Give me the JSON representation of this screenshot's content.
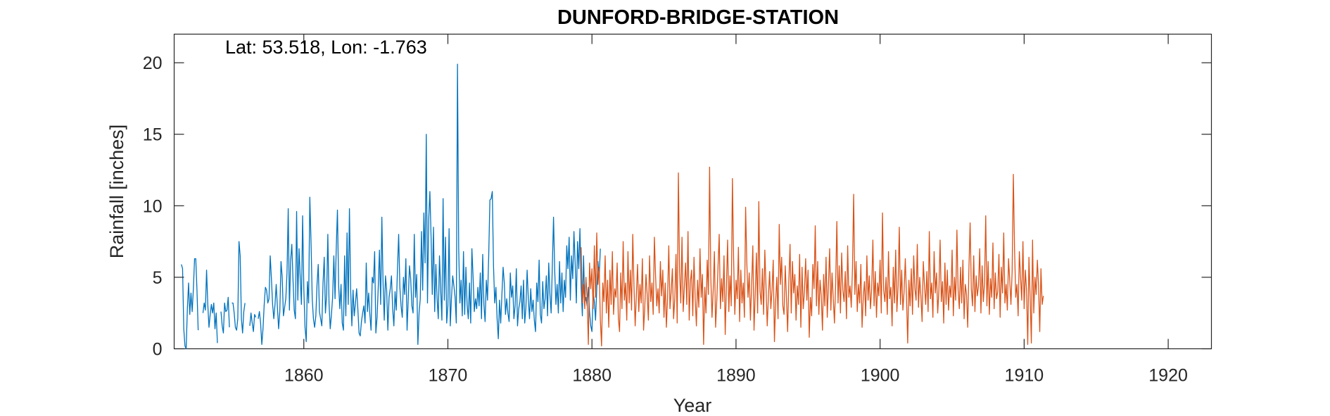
{
  "chart_data": {
    "type": "line",
    "title": "DUNFORD-BRIDGE-STATION",
    "xlabel": "Year",
    "ylabel": "Rainfall [inches]",
    "annotation": "Lat: 53.518, Lon: -1.763",
    "xlim": [
      1851,
      1923
    ],
    "ylim": [
      0,
      22
    ],
    "xticks": [
      1860,
      1870,
      1880,
      1890,
      1900,
      1910,
      1920
    ],
    "yticks": [
      0,
      5,
      10,
      15,
      20
    ],
    "grid": false,
    "series": [
      {
        "color": "#0072BD",
        "start_year": 1851.5,
        "step": 0.0833333,
        "values": [
          5.9,
          5.6,
          1.4,
          0.2,
          0,
          2.8,
          4.6,
          2.4,
          3.9,
          2.6,
          4.2,
          6.3,
          6.3,
          4.1,
          1.3,
          null,
          null,
          null,
          2.5,
          3.2,
          2.7,
          5.5,
          3.1,
          1.5,
          2.4,
          3.1,
          2.5,
          3.2,
          1.4,
          2.5,
          0.4,
          null,
          null,
          2.6,
          1.6,
          1.1,
          3.2,
          2.6,
          2.7,
          3.6,
          1.5,
          null,
          3.2,
          3.2,
          2.5,
          1.5,
          1.3,
          2.1,
          7.5,
          6.5,
          2.1,
          1.1,
          2.6,
          3.2,
          null,
          null,
          null,
          1.6,
          2.5,
          1.8,
          1.2,
          2.4,
          2.2,
          null,
          2.1,
          2.6,
          1.8,
          0.3,
          1.4,
          3.1,
          4.3,
          4.1,
          3.2,
          3.5,
          6.5,
          4.9,
          3.1,
          2.1,
          3.1,
          4.5,
          2.9,
          1.4,
          2.6,
          6.1,
          5.0,
          2.3,
          2.9,
          3.5,
          5.3,
          9.8,
          2.7,
          6.2,
          7.3,
          4.8,
          2.7,
          2.1,
          9.6,
          3.4,
          7.0,
          5.0,
          3.1,
          9.3,
          4.2,
          1.5,
          0.5,
          4.7,
          3.2,
          10.6,
          7.5,
          3.5,
          2.1,
          1.5,
          2.3,
          4.5,
          5.9,
          2.6,
          2.1,
          1.6,
          4.6,
          6.4,
          2.5,
          3.8,
          8.0,
          3.2,
          1.4,
          2.4,
          3.6,
          6.5,
          3.5,
          7.0,
          9.7,
          4.4,
          2.8,
          4.5,
          1.8,
          1.3,
          6.5,
          2.3,
          8.1,
          3.1,
          9.8,
          4.2,
          1.6,
          4.1,
          2.3,
          3.2,
          4.2,
          2.8,
          1.1,
          0.9,
          1.9,
          2.5,
          3.0,
          1.8,
          6.0,
          2.6,
          3.9,
          2.4,
          1.3,
          5.0,
          4.6,
          6.8,
          1.1,
          2.2,
          4.3,
          6.9,
          3.1,
          9.2,
          4.6,
          2.0,
          5.1,
          4.1,
          1.3,
          3.6,
          4.2,
          5.1,
          2.8,
          1.6,
          4.0,
          2.7,
          5.6,
          8.0,
          4.3,
          3.0,
          2.2,
          5.0,
          3.8,
          6.3,
          1.3,
          3.5,
          5.8,
          4.9,
          3.0,
          2.5,
          8.0,
          3.6,
          5.2,
          0.3,
          2.5,
          3.5,
          8.2,
          4.1,
          9.5,
          6.0,
          15.0,
          3.2,
          9.0,
          11.0,
          7.8,
          3.8,
          8.5,
          2.6,
          5.9,
          3.5,
          2.1,
          6.5,
          4.1,
          2.0,
          10.5,
          3.4,
          7.8,
          1.8,
          3.0,
          8.4,
          1.6,
          3.6,
          5.1,
          4.4,
          3.6,
          1.8,
          19.9,
          7.0,
          3.2,
          4.8,
          2.3,
          6.8,
          2.4,
          5.7,
          3.1,
          2.1,
          4.6,
          1.8,
          7.0,
          5.0,
          2.6,
          3.5,
          2.8,
          4.3,
          3.0,
          5.3,
          2.1,
          6.6,
          3.1,
          1.9,
          4.8,
          3.4,
          6.5,
          10.4,
          10.5,
          11.0,
          5.8,
          3.2,
          4.3,
          2.1,
          0.7,
          3.4,
          1.8,
          3.8,
          5.7,
          4.6,
          2.4,
          3.5,
          2.5,
          1.9,
          5.3,
          3.6,
          4.4,
          2.1,
          3.0,
          5.6,
          1.6,
          2.8,
          3.3,
          4.4,
          2.1,
          4.8,
          1.8,
          2.9,
          5.5,
          3.5,
          2.1,
          4.2,
          2.6,
          3.4,
          2.0,
          1.2,
          4.6,
          3.3,
          6.2,
          2.4,
          1.8,
          4.7,
          2.8,
          3.5,
          5.1,
          2.3,
          6.0,
          3.8,
          2.5,
          5.8,
          9.2,
          5.4,
          3.1,
          4.5,
          2.5,
          6.1,
          3.2,
          5.3,
          2.6,
          4.8,
          3.6,
          7.2,
          5.6,
          7.8,
          3.4,
          6.5,
          4.9,
          8.2,
          6.0,
          3.2,
          7.5,
          5.6,
          8.4,
          4.3,
          2.3,
          6.5,
          3.2,
          3.6,
          3.0,
          4.3,
          2.6,
          1.6,
          1.2,
          3.9,
          3.3,
          2.0,
          4.2,
          6.1,
          5.0,
          7.0
        ]
      },
      {
        "color": "#D95319",
        "start_year": 1879.25,
        "step": 0.0833333,
        "values": [
          7.1,
          3.2,
          4.5,
          2.8,
          5.0,
          3.5,
          0.3,
          6.0,
          4.2,
          5.6,
          2.8,
          7.2,
          3.6,
          8.1,
          4.5,
          5.7,
          2.0,
          0.2,
          4.6,
          3.3,
          6.5,
          2.5,
          4.8,
          1.5,
          5.5,
          3.1,
          6.8,
          2.4,
          4.2,
          3.6,
          6.0,
          2.1,
          1.2,
          5.3,
          2.8,
          7.5,
          3.4,
          4.6,
          2.0,
          6.8,
          3.2,
          5.5,
          2.7,
          8.0,
          4.4,
          1.6,
          3.8,
          5.9,
          2.6,
          4.5,
          3.2,
          6.3,
          1.3,
          2.9,
          5.2,
          3.8,
          2.0,
          6.5,
          3.3,
          4.6,
          2.4,
          7.8,
          5.1,
          3.0,
          4.2,
          2.5,
          6.1,
          3.7,
          5.5,
          2.2,
          4.6,
          1.5,
          3.6,
          7.2,
          2.8,
          4.0,
          5.6,
          2.1,
          3.5,
          6.6,
          1.8,
          12.3,
          5.4,
          3.2,
          7.8,
          2.6,
          4.4,
          6.0,
          3.1,
          8.2,
          2.0,
          4.7,
          5.5,
          2.3,
          6.4,
          3.5,
          1.6,
          4.8,
          2.9,
          7.0,
          3.6,
          5.2,
          0.3,
          4.3,
          2.5,
          6.2,
          3.8,
          12.7,
          5.0,
          2.2,
          4.1,
          6.8,
          1.5,
          3.4,
          5.7,
          8.0,
          2.8,
          4.9,
          3.3,
          6.5,
          1.0,
          4.4,
          7.6,
          2.6,
          5.1,
          3.0,
          11.9,
          6.3,
          2.4,
          4.8,
          3.5,
          7.1,
          1.9,
          5.5,
          3.2,
          4.6,
          2.2,
          9.9,
          6.0,
          3.6,
          5.3,
          2.0,
          4.4,
          7.2,
          1.3,
          3.8,
          6.7,
          2.5,
          10.3,
          4.0,
          3.1,
          5.6,
          2.4,
          6.9,
          4.3,
          1.6,
          3.7,
          5.4,
          2.8,
          4.1,
          6.2,
          0.5,
          3.3,
          5.0,
          2.1,
          8.7,
          4.5,
          6.4,
          3.0,
          2.4,
          5.8,
          3.6,
          1.2,
          4.7,
          7.3,
          2.5,
          6.1,
          3.9,
          5.2,
          2.0,
          4.4,
          3.1,
          6.6,
          1.5,
          5.7,
          2.8,
          4.0,
          6.3,
          3.4,
          5.5,
          0.8,
          3.6,
          2.3,
          5.9,
          4.2,
          8.6,
          3.0,
          6.1,
          2.4,
          4.8,
          3.7,
          1.3,
          5.2,
          3.0,
          6.4,
          2.2,
          4.5,
          7.0,
          2.7,
          5.3,
          3.5,
          1.8,
          4.6,
          8.9,
          3.2,
          5.8,
          2.5,
          6.7,
          4.1,
          3.3,
          5.4,
          2.1,
          7.2,
          3.6,
          4.4,
          2.9,
          5.6,
          10.8,
          3.8,
          6.1,
          2.6,
          4.5,
          3.2,
          5.9,
          1.5,
          3.6,
          4.7,
          2.3,
          6.5,
          3.4,
          5.1,
          2.8,
          4.2,
          7.6,
          3.0,
          5.4,
          2.2,
          4.6,
          3.7,
          6.2,
          2.5,
          9.5,
          4.1,
          3.3,
          5.0,
          2.4,
          6.8,
          3.5,
          4.3,
          1.6,
          5.7,
          3.2,
          6.9,
          2.6,
          4.4,
          8.5,
          3.1,
          5.5,
          2.7,
          4.0,
          6.3,
          3.6,
          0.4,
          4.8,
          3.0,
          5.6,
          2.4,
          6.5,
          4.2,
          3.4,
          7.3,
          2.9,
          5.0,
          3.7,
          1.9,
          6.1,
          4.4,
          3.1,
          5.4,
          2.6,
          8.2,
          3.5,
          4.6,
          2.2,
          6.8,
          3.9,
          5.3,
          2.5,
          4.1,
          7.6,
          3.3,
          4.7,
          1.8,
          6.0,
          3.1,
          5.5,
          2.7,
          4.4,
          3.6,
          6.9,
          2.3,
          5.0,
          3.4,
          8.3,
          4.1,
          2.8,
          5.7,
          3.2,
          6.2,
          2.1,
          4.5,
          3.8,
          1.5,
          5.6,
          8.8,
          4.2,
          3.0,
          6.5,
          2.6,
          5.1,
          3.7,
          4.4,
          7.0,
          2.5,
          5.8,
          3.3,
          4.6,
          9.3,
          3.0,
          6.1,
          2.4,
          4.9,
          3.6,
          7.4,
          2.8,
          5.3,
          3.5,
          4.0,
          6.6,
          2.2,
          5.7,
          3.9,
          8.1,
          3.2,
          4.5,
          2.7,
          6.3,
          4.8,
          3.1,
          5.4,
          12.2,
          7.0,
          3.6,
          4.5,
          2.3,
          6.8,
          5.0,
          3.4,
          7.5,
          2.8,
          5.5,
          4.1,
          0.3,
          6.4,
          3.6,
          0.4,
          7.6,
          2.5,
          5.0,
          3.8,
          6.2,
          4.4,
          1.2,
          5.6,
          3.1,
          3.7
        ]
      }
    ]
  }
}
